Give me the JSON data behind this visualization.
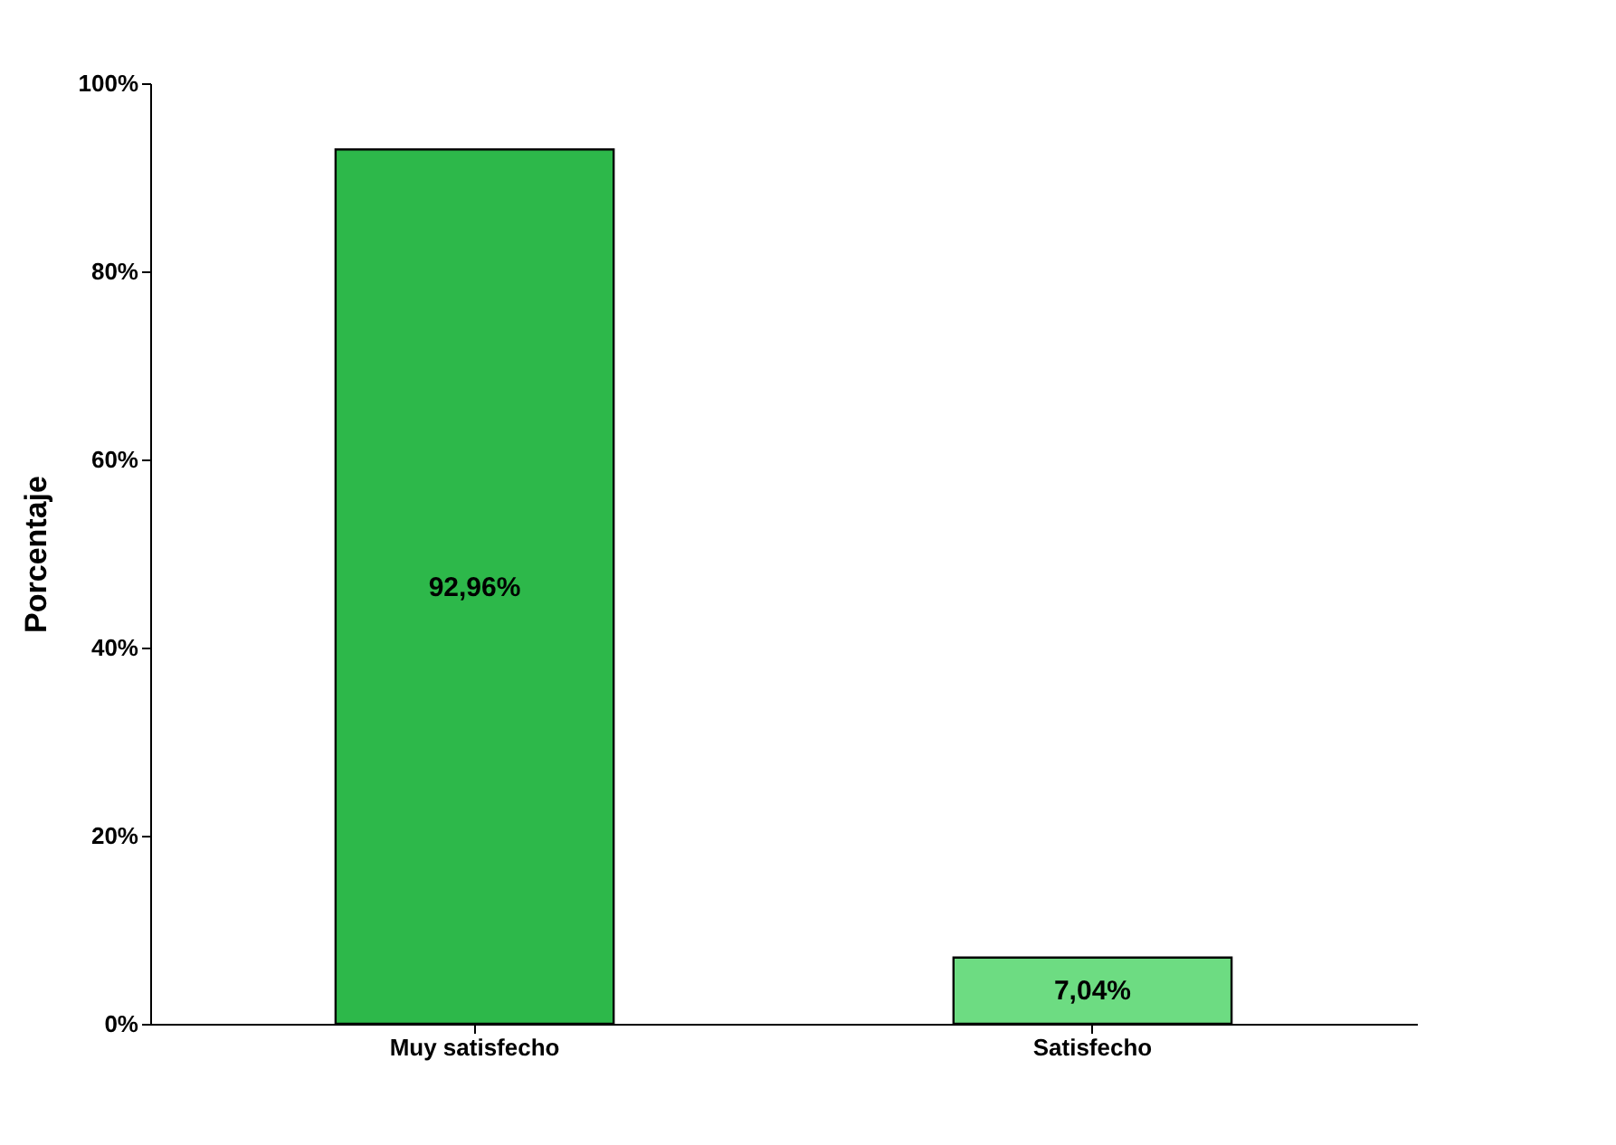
{
  "chart_data": {
    "type": "bar",
    "ylabel": "Porcentaje",
    "categories": [
      "Muy satisfecho",
      "Satisfecho"
    ],
    "values": [
      92.96,
      7.04
    ],
    "colors": [
      "#2db84a",
      "#6ddc82"
    ],
    "value_labels": [
      "92,96%",
      "7,04%"
    ],
    "ylim": [
      0,
      100
    ],
    "yticks": [
      {
        "value": 0,
        "label": "0%"
      },
      {
        "value": 20,
        "label": "20%"
      },
      {
        "value": 40,
        "label": "40%"
      },
      {
        "value": 60,
        "label": "60%"
      },
      {
        "value": 80,
        "label": "80%"
      },
      {
        "value": 100,
        "label": "100%"
      }
    ],
    "grid": false,
    "legend": false
  }
}
